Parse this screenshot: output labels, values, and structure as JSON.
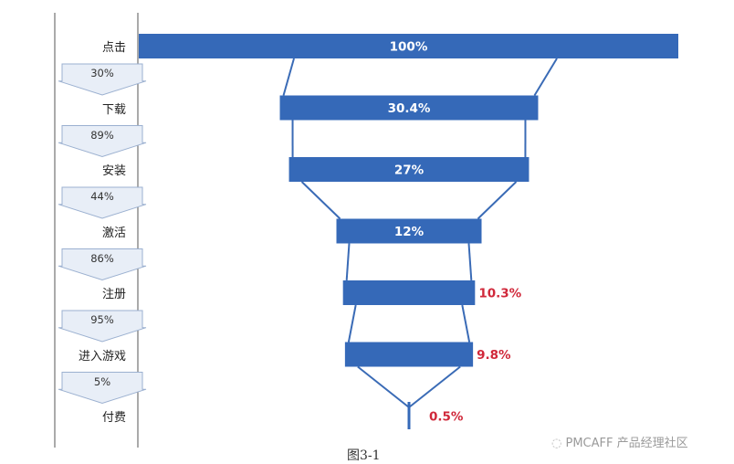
{
  "chart_data": {
    "type": "bar",
    "subtype": "funnel",
    "categories": [
      "点击",
      "下载",
      "安装",
      "激活",
      "注册",
      "进入游戏",
      "付费"
    ],
    "values": [
      100,
      30.4,
      27,
      12,
      10.3,
      9.8,
      0.5
    ],
    "value_labels": [
      "100%",
      "30.4%",
      "27%",
      "12%",
      "10.3%",
      "9.8%",
      "0.5%"
    ],
    "step_conversion": [
      "30%",
      "89%",
      "44%",
      "86%",
      "95%",
      "5%"
    ],
    "colors": {
      "bar": "#3569b8",
      "connector": "#3a6bb6",
      "arrow_fill": "#e8eef7",
      "arrow_stroke": "#9bb0d0",
      "label_in": "#ffffff",
      "label_out": "#d0283a",
      "axis": "#555555"
    }
  },
  "watermark": "PMCAFF 产品经理社区",
  "caption": "图3-1"
}
